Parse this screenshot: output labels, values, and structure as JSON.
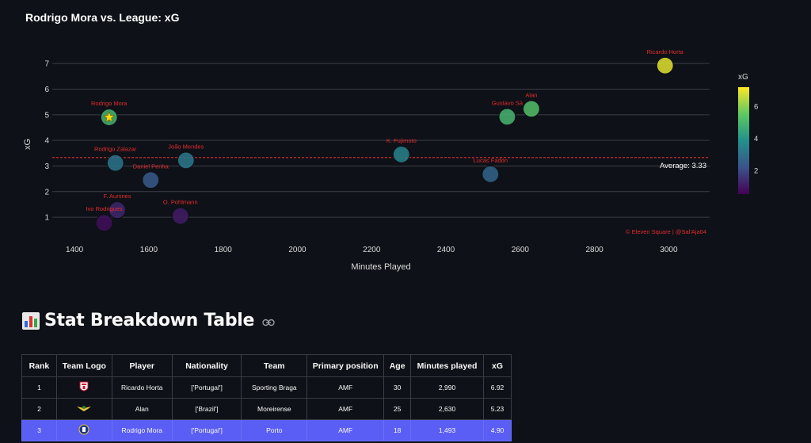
{
  "chart_data": {
    "type": "scatter",
    "title": "Rodrigo Mora vs. League: xG",
    "xlabel": "Minutes Played",
    "ylabel": "xG",
    "xlim": [
      1340,
      3110
    ],
    "ylim": [
      0.2,
      7.5
    ],
    "xticks": [
      1400,
      1600,
      1800,
      2000,
      2200,
      2400,
      2600,
      2800,
      3000
    ],
    "yticks": [
      1,
      2,
      3,
      4,
      5,
      6,
      7
    ],
    "grid": "horizontal",
    "average": {
      "value": 3.33,
      "label": "Average: 3.33",
      "color": "#e32c2c"
    },
    "colorbar": {
      "title": "xG",
      "ticks": [
        2,
        4,
        6
      ],
      "range": [
        0.5,
        7.2
      ],
      "colorscale": "viridis",
      "placement": "right"
    },
    "watermark": "© Eleven Square | @Sal'Aja04",
    "label_color": "#e32c2c",
    "highlight": {
      "name": "Rodrigo Mora",
      "marker": "star"
    },
    "points": [
      {
        "name": "Ricardo Horta",
        "x": 2990,
        "y": 6.92
      },
      {
        "name": "Alan",
        "x": 2630,
        "y": 5.23
      },
      {
        "name": "Gustavo Sá",
        "x": 2565,
        "y": 4.92
      },
      {
        "name": "Rodrigo Mora",
        "x": 1493,
        "y": 4.9
      },
      {
        "name": "K. Fujimoto",
        "x": 2280,
        "y": 3.45
      },
      {
        "name": "João Mendes",
        "x": 1700,
        "y": 3.22
      },
      {
        "name": "Rodrigo Zalazar",
        "x": 1510,
        "y": 3.12
      },
      {
        "name": "Lucas Fadón",
        "x": 2520,
        "y": 2.68
      },
      {
        "name": "Daniel Penha",
        "x": 1605,
        "y": 2.45
      },
      {
        "name": "F. Aursnes",
        "x": 1515,
        "y": 1.28
      },
      {
        "name": "O. Pohlmann",
        "x": 1685,
        "y": 1.05
      },
      {
        "name": "Ivo Rodrigues",
        "x": 1480,
        "y": 0.78
      }
    ]
  },
  "section": {
    "icon": "bar-chart-icon",
    "heading": "Stat Breakdown Table",
    "link_icon": "link-icon"
  },
  "table": {
    "headers": [
      "Rank",
      "Team Logo",
      "Player",
      "Nationality",
      "Team",
      "Primary position",
      "Age",
      "Minutes played",
      "xG"
    ],
    "rows": [
      {
        "rank": "1",
        "logo": "braga-logo-icon",
        "player": "Ricardo Horta",
        "nationality": "['Portugal']",
        "team": "Sporting Braga",
        "position": "AMF",
        "age": "30",
        "minutes": "2,990",
        "xg": "6.92"
      },
      {
        "rank": "2",
        "logo": "moreirense-logo-icon",
        "player": "Alan",
        "nationality": "['Brazil']",
        "team": "Moreirense",
        "position": "AMF",
        "age": "25",
        "minutes": "2,630",
        "xg": "5.23"
      },
      {
        "rank": "3",
        "logo": "porto-logo-icon",
        "player": "Rodrigo Mora",
        "nationality": "['Portugal']",
        "team": "Porto",
        "position": "AMF",
        "age": "18",
        "minutes": "1,493",
        "xg": "4.90"
      }
    ],
    "highlight_row": 2,
    "highlight_color": "#5a5ef5"
  }
}
